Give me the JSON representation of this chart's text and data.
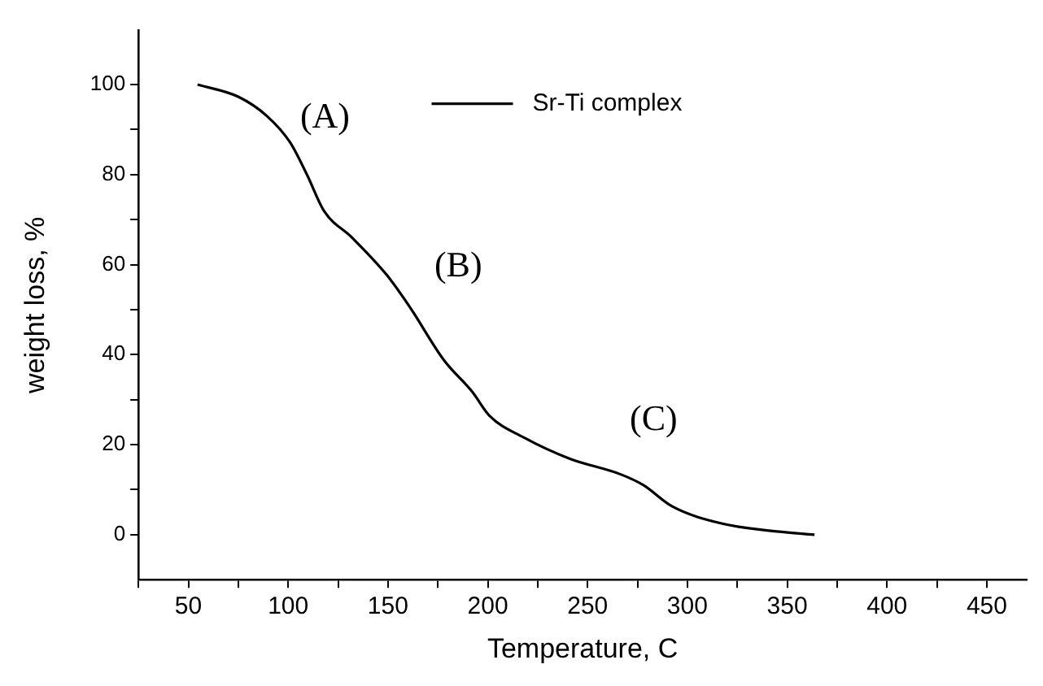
{
  "chart_data": {
    "type": "line",
    "xlabel": "Temperature, C",
    "ylabel": "weight loss, %",
    "x": [
      54.6,
      75,
      89.4,
      100.9,
      109.4,
      118,
      132,
      149.4,
      160.9,
      178,
      192.3,
      200.9,
      218,
      240.9,
      266.6,
      278,
      292.3,
      318,
      340.9,
      363.7
    ],
    "series": [
      {
        "name": "Sr-Ti complex",
        "color": "#000000",
        "values": [
          100,
          97.3,
          93,
          87.2,
          80,
          71.9,
          66,
          57.7,
          50.6,
          38.8,
          31.7,
          26.4,
          21.6,
          16.9,
          13.4,
          11,
          6.3,
          2.4,
          0.9,
          0
        ]
      }
    ],
    "xlim": [
      25,
      470
    ],
    "ylim": [
      -10,
      112
    ],
    "xticks": [
      {
        "value": 25,
        "label": null
      },
      50,
      {
        "value": 75,
        "label": null
      },
      100,
      {
        "value": 125,
        "label": null
      },
      150,
      {
        "value": 175,
        "label": null
      },
      200,
      {
        "value": 225,
        "label": null
      },
      250,
      {
        "value": 275,
        "label": null
      },
      300,
      {
        "value": 325,
        "label": null
      },
      350,
      {
        "value": 375,
        "label": null
      },
      400,
      {
        "value": 425,
        "label": null
      },
      450
    ],
    "yticks": [
      0,
      {
        "value": 10,
        "label": null
      },
      20,
      {
        "value": 30,
        "label": null
      },
      40,
      {
        "value": 50,
        "label": null
      },
      60,
      {
        "value": 70,
        "label": null
      },
      80,
      {
        "value": 90,
        "label": null
      },
      100
    ],
    "annotations": [
      "(A)",
      "(B)",
      "(C)"
    ],
    "legend": "top",
    "grid": false,
    "marker": "none",
    "line_style": "solid"
  }
}
